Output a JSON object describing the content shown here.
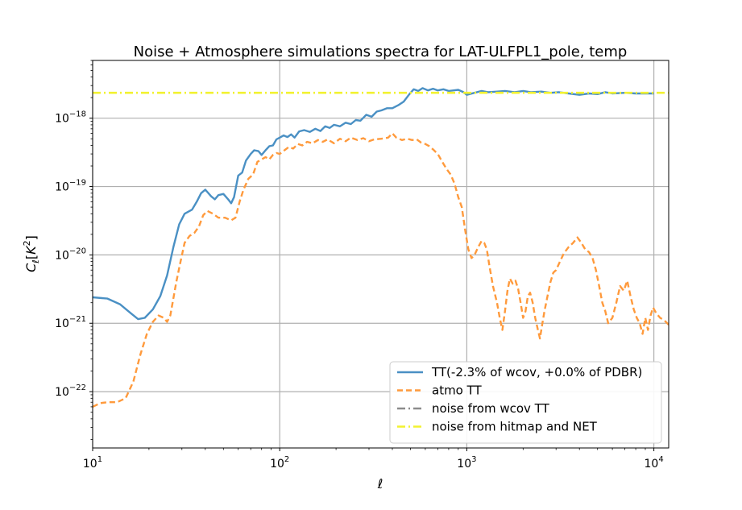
{
  "chart_data": {
    "type": "line",
    "title": "Noise + Atmosphere simulations spectra for LAT-ULFPL1_pole, temp",
    "xlabel": "ℓ",
    "ylabel": "C_ℓ[K^2]",
    "xscale": "log",
    "yscale": "log",
    "xlim": [
      10,
      12000
    ],
    "ylim": [
      1.5e-23,
      7e-18
    ],
    "grid": true,
    "legend_position": "lower-right",
    "x_ticks": [
      {
        "value": 10,
        "base": "10",
        "exp": "1"
      },
      {
        "value": 100,
        "base": "10",
        "exp": "2"
      },
      {
        "value": 1000,
        "base": "10",
        "exp": "3"
      },
      {
        "value": 10000,
        "base": "10",
        "exp": "4"
      }
    ],
    "y_ticks": [
      {
        "value": 1e-22,
        "base": "10",
        "exp": "−22"
      },
      {
        "value": 1e-21,
        "base": "10",
        "exp": "−21"
      },
      {
        "value": 1e-20,
        "base": "10",
        "exp": "−20"
      },
      {
        "value": 1e-19,
        "base": "10",
        "exp": "−19"
      },
      {
        "value": 1e-18,
        "base": "10",
        "exp": "−18"
      }
    ],
    "series": [
      {
        "name": "TT(-2.3% of wcov, +0.0% of PDBR)",
        "color": "#4a90c4",
        "style": "solid",
        "points": [
          [
            10,
            2.4e-21
          ],
          [
            12,
            2.3e-21
          ],
          [
            14,
            1.9e-21
          ],
          [
            16,
            1.4e-21
          ],
          [
            17.5,
            1.15e-21
          ],
          [
            19,
            1.2e-21
          ],
          [
            21,
            1.6e-21
          ],
          [
            23,
            2.5e-21
          ],
          [
            25,
            5e-21
          ],
          [
            27,
            1.3e-20
          ],
          [
            29,
            2.8e-20
          ],
          [
            31,
            4e-20
          ],
          [
            34,
            4.6e-20
          ],
          [
            36,
            6e-20
          ],
          [
            38,
            8e-20
          ],
          [
            40,
            9e-20
          ],
          [
            43,
            7.2e-20
          ],
          [
            45,
            6.5e-20
          ],
          [
            47,
            7.5e-20
          ],
          [
            50,
            7.8e-20
          ],
          [
            53,
            6.5e-20
          ],
          [
            55,
            5.7e-20
          ],
          [
            57,
            7e-20
          ],
          [
            60,
            1.45e-19
          ],
          [
            63,
            1.6e-19
          ],
          [
            66,
            2.4e-19
          ],
          [
            70,
            3e-19
          ],
          [
            73,
            3.4e-19
          ],
          [
            77,
            3.3e-19
          ],
          [
            80,
            2.9e-19
          ],
          [
            84,
            3.4e-19
          ],
          [
            88,
            3.9e-19
          ],
          [
            92,
            4e-19
          ],
          [
            96,
            4.9e-19
          ],
          [
            100,
            5.2e-19
          ],
          [
            105,
            5.6e-19
          ],
          [
            110,
            5.3e-19
          ],
          [
            115,
            5.8e-19
          ],
          [
            120,
            5.2e-19
          ],
          [
            127,
            6.4e-19
          ],
          [
            135,
            6.7e-19
          ],
          [
            145,
            6.3e-19
          ],
          [
            155,
            7e-19
          ],
          [
            165,
            6.5e-19
          ],
          [
            175,
            7.6e-19
          ],
          [
            185,
            7.2e-19
          ],
          [
            195,
            8e-19
          ],
          [
            210,
            7.6e-19
          ],
          [
            225,
            8.6e-19
          ],
          [
            240,
            8.2e-19
          ],
          [
            255,
            9.4e-19
          ],
          [
            270,
            9.2e-19
          ],
          [
            290,
            1.12e-18
          ],
          [
            310,
            1.05e-18
          ],
          [
            330,
            1.25e-18
          ],
          [
            350,
            1.3e-18
          ],
          [
            375,
            1.4e-18
          ],
          [
            400,
            1.4e-18
          ],
          [
            430,
            1.55e-18
          ],
          [
            460,
            1.75e-18
          ],
          [
            490,
            2.2e-18
          ],
          [
            520,
            2.65e-18
          ],
          [
            550,
            2.5e-18
          ],
          [
            580,
            2.75e-18
          ],
          [
            620,
            2.55e-18
          ],
          [
            660,
            2.7e-18
          ],
          [
            700,
            2.55e-18
          ],
          [
            750,
            2.65e-18
          ],
          [
            800,
            2.5e-18
          ],
          [
            850,
            2.55e-18
          ],
          [
            900,
            2.6e-18
          ],
          [
            960,
            2.4e-18
          ],
          [
            1000,
            2.2e-18
          ],
          [
            1100,
            2.35e-18
          ],
          [
            1200,
            2.5e-18
          ],
          [
            1300,
            2.4e-18
          ],
          [
            1450,
            2.45e-18
          ],
          [
            1600,
            2.5e-18
          ],
          [
            1800,
            2.4e-18
          ],
          [
            2000,
            2.5e-18
          ],
          [
            2200,
            2.4e-18
          ],
          [
            2500,
            2.45e-18
          ],
          [
            2800,
            2.35e-18
          ],
          [
            3100,
            2.4e-18
          ],
          [
            3500,
            2.3e-18
          ],
          [
            4000,
            2.2e-18
          ],
          [
            4500,
            2.3e-18
          ],
          [
            5000,
            2.25e-18
          ],
          [
            5500,
            2.4e-18
          ],
          [
            6000,
            2.3e-18
          ],
          [
            7000,
            2.35e-18
          ],
          [
            8000,
            2.3e-18
          ],
          [
            9000,
            2.3e-18
          ],
          [
            10000,
            2.3e-18
          ]
        ]
      },
      {
        "name": "atmo TT",
        "color": "#ff9a3c",
        "style": "dashed",
        "points": [
          [
            10,
            6e-23
          ],
          [
            11,
            6.8e-23
          ],
          [
            12,
            7e-23
          ],
          [
            13.5,
            7e-23
          ],
          [
            15,
            8e-23
          ],
          [
            16.5,
            1.4e-22
          ],
          [
            18,
            3.5e-22
          ],
          [
            19.5,
            7e-22
          ],
          [
            21,
            1.05e-21
          ],
          [
            22.5,
            1.3e-21
          ],
          [
            24,
            1.2e-21
          ],
          [
            25,
            1.05e-21
          ],
          [
            26,
            1.3e-21
          ],
          [
            28,
            4e-21
          ],
          [
            29.5,
            8e-21
          ],
          [
            31,
            1.5e-20
          ],
          [
            33,
            1.9e-20
          ],
          [
            35,
            2.1e-20
          ],
          [
            37,
            2.6e-20
          ],
          [
            39,
            3.8e-20
          ],
          [
            41,
            4.4e-20
          ],
          [
            44,
            4e-20
          ],
          [
            47,
            3.5e-20
          ],
          [
            51,
            3.5e-20
          ],
          [
            55,
            3.2e-20
          ],
          [
            58,
            3.5e-20
          ],
          [
            61,
            6e-20
          ],
          [
            64,
            9e-20
          ],
          [
            68,
            1.3e-19
          ],
          [
            72,
            1.5e-19
          ],
          [
            76,
            2.3e-19
          ],
          [
            80,
            2.5e-19
          ],
          [
            84,
            2.7e-19
          ],
          [
            88,
            2.5e-19
          ],
          [
            92,
            2.9e-19
          ],
          [
            96,
            3.1e-19
          ],
          [
            100,
            3e-19
          ],
          [
            106,
            3.4e-19
          ],
          [
            112,
            3.8e-19
          ],
          [
            118,
            3.6e-19
          ],
          [
            125,
            4.2e-19
          ],
          [
            132,
            4e-19
          ],
          [
            140,
            4.5e-19
          ],
          [
            150,
            4.3e-19
          ],
          [
            160,
            4.8e-19
          ],
          [
            170,
            4.5e-19
          ],
          [
            180,
            4.9e-19
          ],
          [
            195,
            4.3e-19
          ],
          [
            210,
            5e-19
          ],
          [
            225,
            4.6e-19
          ],
          [
            240,
            5.2e-19
          ],
          [
            260,
            4.8e-19
          ],
          [
            280,
            5.1e-19
          ],
          [
            300,
            4.6e-19
          ],
          [
            320,
            4.9e-19
          ],
          [
            350,
            5e-19
          ],
          [
            380,
            5.2e-19
          ],
          [
            400,
            6e-19
          ],
          [
            420,
            5.2e-19
          ],
          [
            450,
            4.8e-19
          ],
          [
            480,
            5e-19
          ],
          [
            510,
            4.8e-19
          ],
          [
            540,
            4.9e-19
          ],
          [
            570,
            4.4e-19
          ],
          [
            600,
            4.2e-19
          ],
          [
            630,
            3.9e-19
          ],
          [
            660,
            3.5e-19
          ],
          [
            700,
            3e-19
          ],
          [
            740,
            2.3e-19
          ],
          [
            780,
            1.8e-19
          ],
          [
            820,
            1.5e-19
          ],
          [
            860,
            1.1e-19
          ],
          [
            900,
            7e-20
          ],
          [
            940,
            5e-20
          ],
          [
            980,
            2.3e-20
          ],
          [
            1020,
            1.2e-20
          ],
          [
            1060,
            9e-21
          ],
          [
            1100,
            1e-20
          ],
          [
            1150,
            1.3e-20
          ],
          [
            1200,
            1.6e-20
          ],
          [
            1240,
            1.5e-20
          ],
          [
            1280,
            1.2e-20
          ],
          [
            1320,
            7e-21
          ],
          [
            1380,
            3.5e-21
          ],
          [
            1450,
            2e-21
          ],
          [
            1500,
            1.2e-21
          ],
          [
            1550,
            8e-22
          ],
          [
            1600,
            1.5e-21
          ],
          [
            1650,
            3e-21
          ],
          [
            1700,
            4.5e-21
          ],
          [
            1760,
            3.8e-21
          ],
          [
            1820,
            4.2e-21
          ],
          [
            1880,
            3.2e-21
          ],
          [
            1940,
            2e-21
          ],
          [
            2000,
            1.2e-21
          ],
          [
            2060,
            1.5e-21
          ],
          [
            2120,
            2.5e-21
          ],
          [
            2180,
            2.8e-21
          ],
          [
            2250,
            2e-21
          ],
          [
            2320,
            1.2e-21
          ],
          [
            2400,
            8e-22
          ],
          [
            2460,
            6e-22
          ],
          [
            2520,
            9e-22
          ],
          [
            2600,
            1.5e-21
          ],
          [
            2700,
            2.5e-21
          ],
          [
            2800,
            4e-21
          ],
          [
            2900,
            5.5e-21
          ],
          [
            3000,
            6e-21
          ],
          [
            3150,
            8e-21
          ],
          [
            3300,
            1.05e-20
          ],
          [
            3500,
            1.3e-20
          ],
          [
            3700,
            1.5e-20
          ],
          [
            3900,
            1.8e-20
          ],
          [
            4100,
            1.5e-20
          ],
          [
            4300,
            1.2e-20
          ],
          [
            4500,
            1.1e-20
          ],
          [
            4700,
            9e-21
          ],
          [
            4900,
            6e-21
          ],
          [
            5100,
            3.5e-21
          ],
          [
            5300,
            2e-21
          ],
          [
            5500,
            1.5e-21
          ],
          [
            5700,
            1e-21
          ],
          [
            6000,
            1.2e-21
          ],
          [
            6300,
            2e-21
          ],
          [
            6600,
            3.5e-21
          ],
          [
            6900,
            3e-21
          ],
          [
            7200,
            4.2e-21
          ],
          [
            7500,
            2.5e-21
          ],
          [
            7800,
            1.6e-21
          ],
          [
            8100,
            1.2e-21
          ],
          [
            8400,
            1e-21
          ],
          [
            8700,
            7e-22
          ],
          [
            9000,
            1.2e-21
          ],
          [
            9300,
            8e-22
          ],
          [
            9600,
            1.3e-21
          ],
          [
            9900,
            1.7e-21
          ],
          [
            10300,
            1.4e-21
          ],
          [
            10800,
            1.2e-21
          ],
          [
            11400,
            1.1e-21
          ],
          [
            12000,
            9.5e-22
          ]
        ]
      },
      {
        "name": "noise from wcov TT",
        "color": "#8c8c8c",
        "style": "dashdot",
        "points": [
          [
            10,
            2.35e-18
          ],
          [
            12000,
            2.35e-18
          ]
        ]
      },
      {
        "name": "noise from hitmap and NET",
        "color": "#f2f230",
        "style": "dashdot",
        "points": [
          [
            10,
            2.35e-18
          ],
          [
            12000,
            2.35e-18
          ]
        ]
      }
    ]
  }
}
